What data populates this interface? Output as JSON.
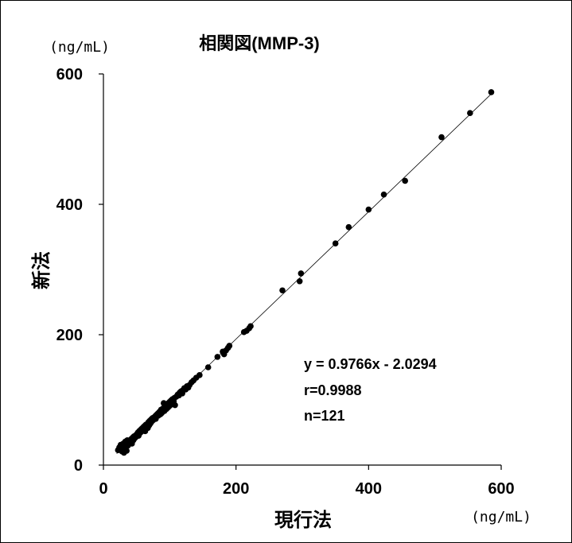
{
  "chart_data": {
    "type": "scatter",
    "title": "相関図(MMP-3)",
    "xlabel": "現行法",
    "ylabel": "新法",
    "x_unit": "(ng/mL)",
    "y_unit": "(ng/mL)",
    "xlim": [
      0,
      600
    ],
    "ylim": [
      0,
      600
    ],
    "xticks": [
      "0",
      "200",
      "400",
      "600"
    ],
    "yticks": [
      "0",
      "200",
      "400",
      "600"
    ],
    "tick_values": [
      0,
      200,
      400,
      600
    ],
    "grid": false,
    "legend": "none",
    "annotations": [
      "y = 0.9766x - 2.0294",
      "r=0.9988",
      "n=121"
    ],
    "regression": {
      "slope": 0.9766,
      "intercept": -2.0294,
      "x_range": [
        20,
        585
      ]
    },
    "point_color": "#000000",
    "line_color": "#000000",
    "series": [
      {
        "points": [
          [
            22,
            23
          ],
          [
            24,
            27
          ],
          [
            26,
            31
          ],
          [
            28,
            21
          ],
          [
            29,
            26
          ],
          [
            30,
            33
          ],
          [
            31,
            19
          ],
          [
            32,
            24
          ],
          [
            33,
            36
          ],
          [
            34,
            29
          ],
          [
            35,
            22
          ],
          [
            36,
            38
          ],
          [
            37,
            30
          ],
          [
            38,
            34
          ],
          [
            40,
            37
          ],
          [
            42,
            40
          ],
          [
            43,
            33
          ],
          [
            44,
            42
          ],
          [
            45,
            38
          ],
          [
            46,
            44
          ],
          [
            47,
            41
          ],
          [
            48,
            45
          ],
          [
            49,
            43
          ],
          [
            50,
            47
          ],
          [
            51,
            46
          ],
          [
            52,
            50
          ],
          [
            53,
            45
          ],
          [
            54,
            52
          ],
          [
            55,
            49
          ],
          [
            56,
            54
          ],
          [
            57,
            51
          ],
          [
            58,
            56
          ],
          [
            59,
            53
          ],
          [
            60,
            58
          ],
          [
            61,
            55
          ],
          [
            62,
            60
          ],
          [
            63,
            52
          ],
          [
            64,
            62
          ],
          [
            65,
            59
          ],
          [
            66,
            63
          ],
          [
            67,
            57
          ],
          [
            68,
            66
          ],
          [
            69,
            61
          ],
          [
            70,
            68
          ],
          [
            71,
            64
          ],
          [
            72,
            70
          ],
          [
            73,
            67
          ],
          [
            74,
            72
          ],
          [
            75,
            69
          ],
          [
            76,
            73
          ],
          [
            78,
            75
          ],
          [
            79,
            71
          ],
          [
            80,
            77
          ],
          [
            82,
            79
          ],
          [
            83,
            76
          ],
          [
            84,
            81
          ],
          [
            85,
            82
          ],
          [
            86,
            78
          ],
          [
            87,
            85
          ],
          [
            88,
            80
          ],
          [
            89,
            84
          ],
          [
            90,
            87
          ],
          [
            91,
            95
          ],
          [
            92,
            83
          ],
          [
            93,
            89
          ],
          [
            94,
            91
          ],
          [
            95,
            86
          ],
          [
            96,
            93
          ],
          [
            97,
            88
          ],
          [
            98,
            95
          ],
          [
            99,
            90
          ],
          [
            100,
            97
          ],
          [
            101,
            92
          ],
          [
            102,
            99
          ],
          [
            103,
            94
          ],
          [
            104,
            101
          ],
          [
            105,
            96
          ],
          [
            106,
            98
          ],
          [
            107,
            103
          ],
          [
            108,
            92
          ],
          [
            110,
            105
          ],
          [
            112,
            108
          ],
          [
            114,
            107
          ],
          [
            115,
            111
          ],
          [
            117,
            113
          ],
          [
            119,
            110
          ],
          [
            120,
            115
          ],
          [
            122,
            118
          ],
          [
            124,
            116
          ],
          [
            126,
            121
          ],
          [
            128,
            119
          ],
          [
            130,
            123
          ],
          [
            133,
            127
          ],
          [
            136,
            130
          ],
          [
            140,
            134
          ],
          [
            145,
            138
          ],
          [
            158,
            150
          ],
          [
            172,
            166
          ],
          [
            182,
            170
          ],
          [
            185,
            176
          ],
          [
            188,
            180
          ],
          [
            190,
            183
          ],
          [
            212,
            204
          ],
          [
            216,
            206
          ],
          [
            220,
            210
          ],
          [
            222,
            213
          ],
          [
            270,
            268
          ],
          [
            296,
            282
          ],
          [
            298,
            294
          ],
          [
            350,
            340
          ],
          [
            370,
            365
          ],
          [
            400,
            392
          ],
          [
            423,
            415
          ],
          [
            455,
            436
          ],
          [
            510,
            503
          ],
          [
            553,
            540
          ],
          [
            585,
            572
          ],
          [
            180,
            174
          ],
          [
            60,
            57
          ],
          [
            34,
            31
          ],
          [
            26,
            25
          ]
        ]
      }
    ]
  }
}
